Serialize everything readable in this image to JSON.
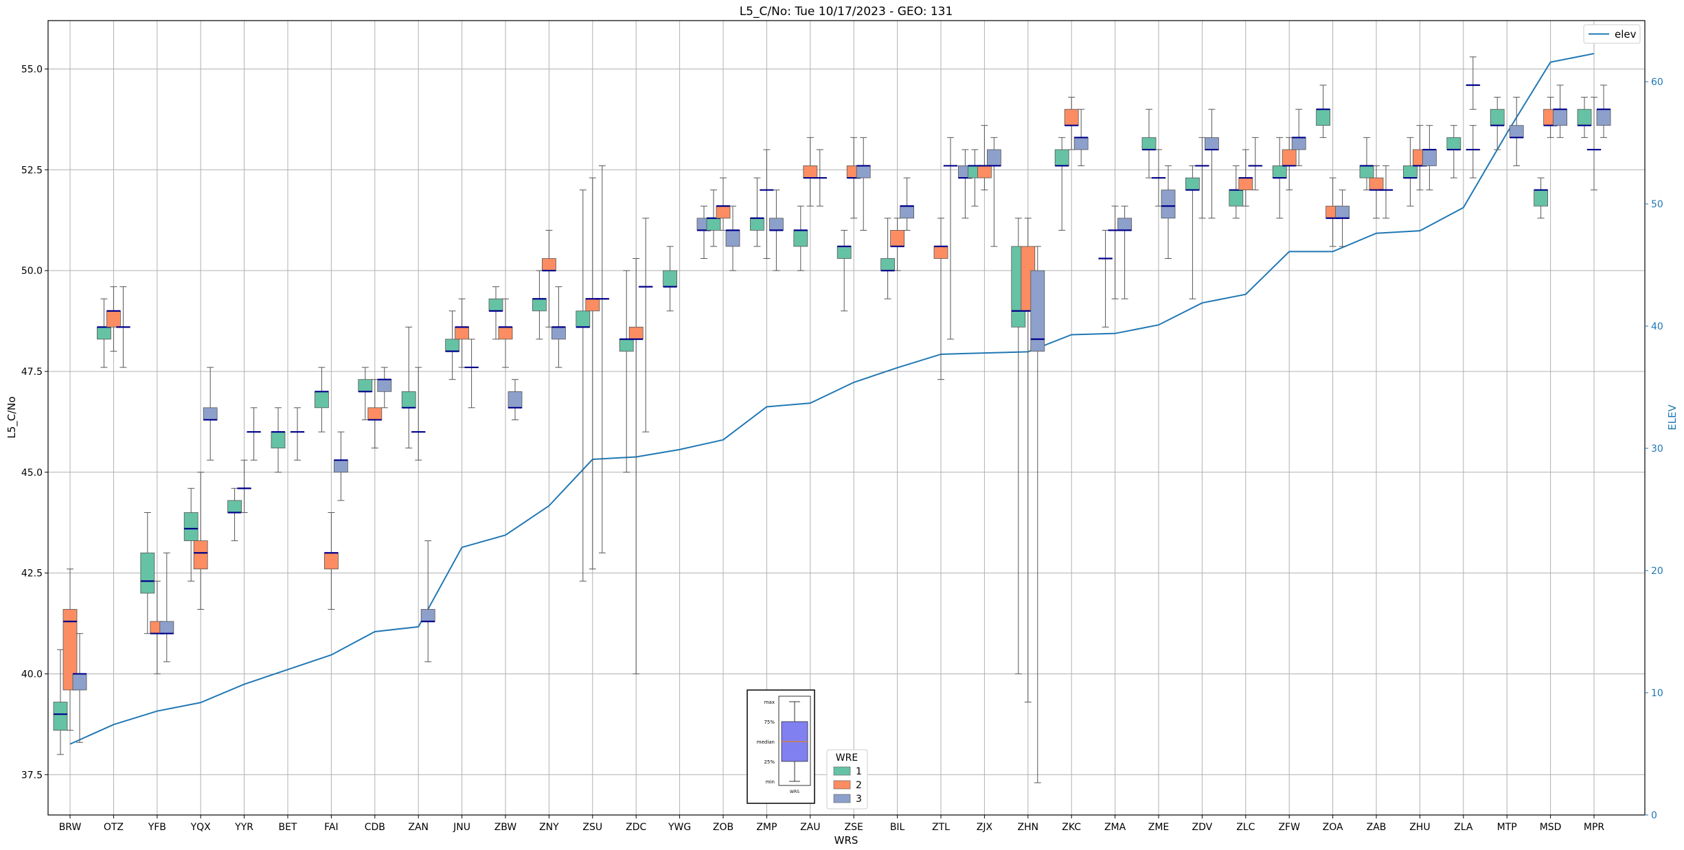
{
  "chart_data": {
    "type": "box",
    "title": "L5_C/No: Tue 10/17/2023 - GEO: 131",
    "xlabel": "WRS",
    "ylabel": "L5_C/No",
    "ylabel_right": "ELEV",
    "ylim": [
      36.5,
      56.2
    ],
    "ylim_right": [
      0,
      65
    ],
    "yticks": [
      "37.5",
      "40.0",
      "42.5",
      "45.0",
      "47.5",
      "50.0",
      "52.5",
      "55.0"
    ],
    "yticks_right": [
      "0",
      "10",
      "20",
      "30",
      "40",
      "50",
      "60"
    ],
    "grid": true,
    "categories": [
      "BRW",
      "OTZ",
      "YFB",
      "YQX",
      "YYR",
      "BET",
      "FAI",
      "CDB",
      "ZAN",
      "JNU",
      "ZBW",
      "ZNY",
      "ZSU",
      "ZDC",
      "YWG",
      "ZOB",
      "ZMP",
      "ZAU",
      "ZSE",
      "BIL",
      "ZTL",
      "ZJX",
      "ZHN",
      "ZKC",
      "ZMA",
      "ZME",
      "ZDV",
      "ZLC",
      "ZFW",
      "ZOA",
      "ZAB",
      "ZHU",
      "ZLA",
      "MTP",
      "MSD",
      "MPR"
    ],
    "series_colors": {
      "1": "#66c2a5",
      "2": "#fc8d62",
      "3": "#8da0cb"
    },
    "boxes": {
      "BRW": [
        [
          1,
          38.0,
          38.6,
          39.0,
          39.3,
          40.6
        ],
        [
          2,
          38.6,
          39.6,
          41.3,
          41.6,
          42.6
        ],
        [
          3,
          38.3,
          39.6,
          40.0,
          40.0,
          41.0
        ]
      ],
      "OTZ": [
        [
          1,
          47.6,
          48.3,
          48.6,
          48.6,
          49.3
        ],
        [
          2,
          48.0,
          48.6,
          49.0,
          49.0,
          49.6
        ],
        [
          3,
          47.6,
          48.6,
          48.6,
          48.6,
          49.6
        ]
      ],
      "YFB": [
        [
          1,
          41.0,
          42.0,
          42.3,
          43.0,
          44.0
        ],
        [
          2,
          40.0,
          41.0,
          41.0,
          41.3,
          42.3
        ],
        [
          3,
          40.3,
          41.0,
          41.0,
          41.3,
          43.0
        ]
      ],
      "YQX": [
        [
          1,
          42.3,
          43.3,
          43.6,
          44.0,
          44.6
        ],
        [
          2,
          41.6,
          42.6,
          43.0,
          43.3,
          45.0
        ],
        [
          3,
          45.3,
          46.3,
          46.3,
          46.6,
          47.6
        ]
      ],
      "YYR": [
        [
          1,
          43.3,
          44.0,
          44.0,
          44.3,
          44.6
        ],
        [
          2,
          44.0,
          44.6,
          44.6,
          44.6,
          45.3
        ],
        [
          3,
          45.3,
          46.0,
          46.0,
          46.0,
          46.6
        ]
      ],
      "BET": [
        [
          1,
          45.0,
          45.6,
          46.0,
          46.0,
          46.6
        ],
        [
          3,
          45.3,
          46.0,
          46.0,
          46.0,
          46.6
        ]
      ],
      "FAI": [
        [
          1,
          46.0,
          46.6,
          47.0,
          47.0,
          47.6
        ],
        [
          2,
          41.6,
          42.6,
          43.0,
          43.0,
          44.0
        ],
        [
          3,
          44.3,
          45.0,
          45.3,
          45.3,
          46.0
        ]
      ],
      "CDB": [
        [
          1,
          46.3,
          47.0,
          47.0,
          47.3,
          47.6
        ],
        [
          2,
          45.6,
          46.3,
          46.3,
          46.6,
          47.3
        ],
        [
          3,
          46.6,
          47.0,
          47.3,
          47.3,
          47.6
        ]
      ],
      "ZAN": [
        [
          1,
          45.6,
          46.6,
          46.6,
          47.0,
          48.6
        ],
        [
          2,
          45.3,
          46.0,
          46.0,
          46.0,
          47.6
        ],
        [
          3,
          40.3,
          41.3,
          41.3,
          41.6,
          43.3
        ]
      ],
      "JNU": [
        [
          1,
          47.3,
          48.0,
          48.0,
          48.3,
          49.0
        ],
        [
          2,
          47.6,
          48.3,
          48.6,
          48.6,
          49.3
        ],
        [
          3,
          46.6,
          47.6,
          47.6,
          47.6,
          48.3
        ]
      ],
      "ZBW": [
        [
          1,
          48.3,
          49.0,
          49.0,
          49.3,
          49.6
        ],
        [
          2,
          47.6,
          48.3,
          48.6,
          48.6,
          49.3
        ],
        [
          3,
          46.3,
          46.6,
          46.6,
          47.0,
          47.3
        ]
      ],
      "ZNY": [
        [
          1,
          48.3,
          49.0,
          49.3,
          49.3,
          50.0
        ],
        [
          2,
          48.6,
          50.0,
          50.0,
          50.3,
          51.0
        ],
        [
          3,
          47.6,
          48.3,
          48.6,
          48.6,
          49.6
        ]
      ],
      "ZSU": [
        [
          1,
          42.3,
          48.6,
          48.6,
          49.0,
          52.0
        ],
        [
          2,
          42.6,
          49.0,
          49.3,
          49.3,
          52.3
        ],
        [
          3,
          43.0,
          49.3,
          49.3,
          49.3,
          52.6
        ]
      ],
      "ZDC": [
        [
          1,
          45.0,
          48.0,
          48.3,
          48.3,
          50.0
        ],
        [
          2,
          40.0,
          48.3,
          48.3,
          48.6,
          50.3
        ],
        [
          3,
          46.0,
          49.6,
          49.6,
          49.6,
          51.3
        ]
      ],
      "YWG": [
        [
          1,
          49.0,
          49.6,
          49.6,
          50.0,
          50.6
        ]
      ],
      "ZOB": [
        [
          3,
          50.3,
          51.0,
          51.0,
          51.3,
          51.6
        ],
        [
          1,
          50.6,
          51.0,
          51.3,
          51.3,
          52.0
        ],
        [
          2,
          51.0,
          51.3,
          51.6,
          51.6,
          52.3
        ],
        [
          3,
          50.0,
          50.6,
          51.0,
          51.0,
          51.6
        ]
      ],
      "ZMP": [
        [
          1,
          50.6,
          51.0,
          51.3,
          51.3,
          52.3
        ],
        [
          2,
          50.3,
          52.0,
          52.0,
          52.0,
          53.0
        ],
        [
          3,
          50.0,
          51.0,
          51.0,
          51.3,
          52.0
        ]
      ],
      "ZAU": [
        [
          1,
          50.0,
          50.6,
          51.0,
          51.0,
          51.6
        ],
        [
          2,
          51.6,
          52.3,
          52.3,
          52.6,
          53.3
        ],
        [
          3,
          51.6,
          52.3,
          52.3,
          52.3,
          53.0
        ]
      ],
      "ZSE": [
        [
          1,
          49.0,
          50.3,
          50.6,
          50.6,
          51.0
        ],
        [
          2,
          51.3,
          52.3,
          52.3,
          52.6,
          53.3
        ],
        [
          3,
          51.0,
          52.3,
          52.6,
          52.6,
          53.3
        ]
      ],
      "BIL": [
        [
          1,
          49.3,
          50.0,
          50.0,
          50.3,
          51.3
        ],
        [
          2,
          50.0,
          50.6,
          50.6,
          51.0,
          51.3
        ],
        [
          3,
          51.0,
          51.3,
          51.6,
          51.6,
          52.3
        ]
      ],
      "ZTL": [
        [
          2,
          47.3,
          50.3,
          50.6,
          50.6,
          51.3
        ],
        [
          3,
          48.3,
          52.6,
          52.6,
          52.6,
          53.3
        ]
      ],
      "ZJX": [
        [
          3,
          51.3,
          52.3,
          52.3,
          52.6,
          53.0
        ],
        [
          1,
          51.6,
          52.3,
          52.6,
          52.6,
          53.0
        ],
        [
          2,
          52.0,
          52.3,
          52.6,
          52.6,
          53.6
        ],
        [
          3,
          50.6,
          52.6,
          52.6,
          53.0,
          53.3
        ]
      ],
      "ZHN": [
        [
          1,
          40.0,
          48.6,
          49.0,
          50.6,
          51.3
        ],
        [
          2,
          39.3,
          49.0,
          49.0,
          50.6,
          51.3
        ],
        [
          3,
          37.3,
          48.0,
          48.3,
          50.0,
          50.6
        ]
      ],
      "ZKC": [
        [
          1,
          51.0,
          52.6,
          52.6,
          53.0,
          53.3
        ],
        [
          2,
          53.0,
          53.6,
          53.6,
          54.0,
          54.3
        ],
        [
          3,
          52.6,
          53.0,
          53.3,
          53.3,
          54.0
        ]
      ],
      "ZMA": [
        [
          1,
          48.6,
          50.3,
          50.3,
          50.3,
          51.0
        ],
        [
          2,
          49.3,
          51.0,
          51.0,
          51.0,
          51.6
        ],
        [
          3,
          49.3,
          51.0,
          51.0,
          51.3,
          51.6
        ]
      ],
      "ZME": [
        [
          1,
          52.3,
          53.0,
          53.0,
          53.3,
          54.0
        ],
        [
          2,
          51.6,
          52.3,
          52.3,
          52.3,
          53.0
        ],
        [
          3,
          50.3,
          51.3,
          51.6,
          52.0,
          52.6
        ]
      ],
      "ZDV": [
        [
          1,
          49.3,
          52.0,
          52.0,
          52.3,
          52.6
        ],
        [
          2,
          51.3,
          52.6,
          52.6,
          52.6,
          53.3
        ],
        [
          3,
          51.3,
          53.0,
          53.0,
          53.3,
          54.0
        ]
      ],
      "ZLC": [
        [
          1,
          51.3,
          51.6,
          52.0,
          52.0,
          52.6
        ],
        [
          2,
          51.6,
          52.0,
          52.3,
          52.3,
          53.0
        ],
        [
          3,
          52.0,
          52.6,
          52.6,
          52.6,
          53.3
        ]
      ],
      "ZFW": [
        [
          1,
          51.3,
          52.3,
          52.3,
          52.6,
          53.3
        ],
        [
          2,
          52.0,
          52.6,
          52.6,
          53.0,
          53.3
        ],
        [
          3,
          52.6,
          53.0,
          53.3,
          53.3,
          54.0
        ]
      ],
      "ZOA": [
        [
          1,
          53.3,
          53.6,
          54.0,
          54.0,
          54.6
        ],
        [
          2,
          50.6,
          51.3,
          51.3,
          51.6,
          52.3
        ],
        [
          3,
          50.6,
          51.3,
          51.3,
          51.6,
          52.0
        ]
      ],
      "ZAB": [
        [
          1,
          52.0,
          52.3,
          52.6,
          52.6,
          53.3
        ],
        [
          2,
          51.3,
          52.0,
          52.0,
          52.3,
          52.6
        ],
        [
          3,
          51.3,
          52.0,
          52.0,
          52.0,
          52.6
        ]
      ],
      "ZHU": [
        [
          1,
          51.6,
          52.3,
          52.3,
          52.6,
          53.3
        ],
        [
          2,
          52.0,
          52.6,
          52.6,
          53.0,
          53.6
        ],
        [
          3,
          52.0,
          52.6,
          53.0,
          53.0,
          53.6
        ]
      ],
      "ZLA": [
        [
          1,
          52.3,
          53.0,
          53.0,
          53.3,
          53.6
        ],
        [
          3,
          52.3,
          53.0,
          53.0,
          53.0,
          53.6
        ],
        [
          3,
          54.0,
          54.6,
          54.6,
          54.6,
          55.3
        ]
      ],
      "MTP": [
        [
          1,
          53.0,
          53.6,
          53.6,
          54.0,
          54.3
        ],
        [
          3,
          52.6,
          53.3,
          53.3,
          53.6,
          54.3
        ]
      ],
      "MSD": [
        [
          1,
          51.3,
          51.6,
          52.0,
          52.0,
          52.3
        ],
        [
          2,
          53.3,
          53.6,
          53.6,
          54.0,
          54.3
        ],
        [
          3,
          53.3,
          53.6,
          54.0,
          54.0,
          54.6
        ]
      ],
      "MPR": [
        [
          1,
          53.3,
          53.6,
          53.6,
          54.0,
          54.3
        ],
        [
          2,
          52.0,
          53.0,
          53.0,
          53.0,
          54.3
        ],
        [
          3,
          53.3,
          53.6,
          54.0,
          54.0,
          54.6
        ]
      ]
    },
    "elev_series": {
      "name": "elev",
      "values": [
        5.8,
        7.4,
        8.5,
        9.2,
        10.7,
        11.9,
        13.1,
        15.0,
        15.4,
        21.9,
        22.9,
        25.3,
        29.1,
        29.3,
        29.9,
        30.7,
        33.4,
        33.7,
        35.4,
        36.6,
        37.7,
        37.8,
        37.9,
        39.3,
        39.4,
        40.1,
        41.9,
        42.6,
        46.1,
        46.1,
        47.6,
        47.8,
        49.7,
        55.8,
        61.6,
        62.3
      ]
    },
    "legend_elev": "elev",
    "legend_wre_title": "WRE",
    "legend_wre_items": [
      {
        "label": "1",
        "color": "#66c2a5"
      },
      {
        "label": "2",
        "color": "#fc8d62"
      },
      {
        "label": "3",
        "color": "#8da0cb"
      }
    ],
    "key_labels": [
      "max",
      "75%",
      "median",
      "25%",
      "min"
    ],
    "key_xlabel": "WRS"
  }
}
